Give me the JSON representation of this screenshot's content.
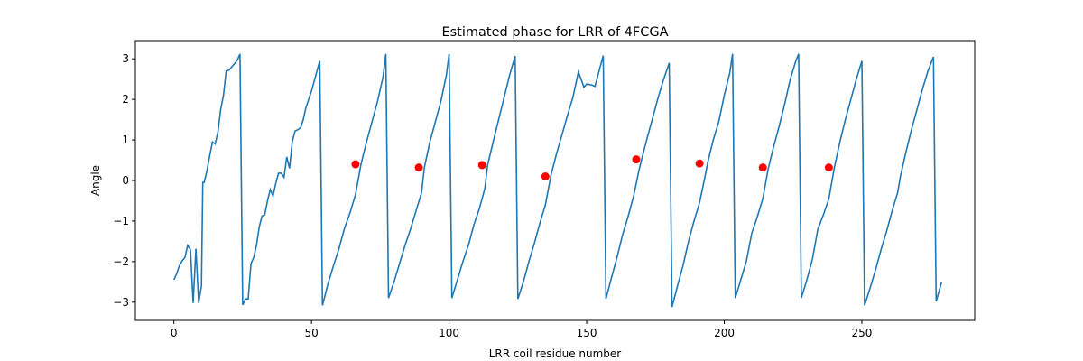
{
  "chart_data": {
    "type": "line",
    "title": "Estimated phase for LRR of 4FCGA",
    "xlabel": "LRR coil residue number",
    "ylabel": "Angle",
    "xlim": [
      -14,
      291
    ],
    "ylim": [
      -3.45,
      3.45
    ],
    "xticks": [
      0,
      50,
      100,
      150,
      200,
      250
    ],
    "yticks": [
      -3,
      -2,
      -1,
      0,
      1,
      2,
      3
    ],
    "grid": false,
    "line_color": "#1f77b4",
    "marker_color": "#ff0000",
    "series": [
      {
        "values": [
          [
            0,
            -2.45
          ],
          [
            1,
            -2.3
          ],
          [
            2,
            -2.1
          ],
          [
            3,
            -1.98
          ],
          [
            4,
            -1.9
          ],
          [
            5,
            -1.6
          ],
          [
            6,
            -1.7
          ],
          [
            7,
            -3.02
          ],
          [
            8,
            -1.68
          ],
          [
            9,
            -3.02
          ],
          [
            10,
            -2.6
          ],
          [
            10.5,
            -0.05
          ],
          [
            11,
            -0.05
          ],
          [
            12,
            0.25
          ],
          [
            13,
            0.6
          ],
          [
            14,
            0.95
          ],
          [
            15,
            0.9
          ],
          [
            16,
            1.2
          ],
          [
            17,
            1.75
          ],
          [
            18,
            2.1
          ],
          [
            19,
            2.7
          ],
          [
            20,
            2.72
          ],
          [
            21,
            2.8
          ],
          [
            22,
            2.88
          ],
          [
            23,
            2.96
          ],
          [
            24,
            3.12
          ],
          [
            25,
            -3.07
          ],
          [
            26,
            -2.92
          ],
          [
            27,
            -2.92
          ],
          [
            28,
            -2.05
          ],
          [
            29,
            -1.9
          ],
          [
            30,
            -1.6
          ],
          [
            31,
            -1.15
          ],
          [
            32,
            -0.88
          ],
          [
            33,
            -0.85
          ],
          [
            34,
            -0.5
          ],
          [
            35,
            -0.22
          ],
          [
            36,
            -0.38
          ],
          [
            37,
            -0.08
          ],
          [
            38,
            0.18
          ],
          [
            39,
            0.18
          ],
          [
            40,
            0.08
          ],
          [
            41,
            0.58
          ],
          [
            42,
            0.3
          ],
          [
            43,
            0.95
          ],
          [
            44,
            1.22
          ],
          [
            45,
            1.25
          ],
          [
            46,
            1.3
          ],
          [
            47,
            1.5
          ],
          [
            48,
            1.8
          ],
          [
            50,
            2.2
          ],
          [
            52,
            2.7
          ],
          [
            53,
            2.95
          ],
          [
            54,
            -3.08
          ],
          [
            56,
            -2.55
          ],
          [
            58,
            -2.1
          ],
          [
            60,
            -1.68
          ],
          [
            62,
            -1.18
          ],
          [
            64,
            -0.8
          ],
          [
            66,
            -0.35
          ],
          [
            68,
            0.4
          ],
          [
            70,
            0.95
          ],
          [
            72,
            1.45
          ],
          [
            74,
            1.95
          ],
          [
            76,
            2.55
          ],
          [
            77,
            3.12
          ],
          [
            78,
            -2.9
          ],
          [
            80,
            -2.5
          ],
          [
            82,
            -2.05
          ],
          [
            84,
            -1.6
          ],
          [
            86,
            -1.2
          ],
          [
            88,
            -0.75
          ],
          [
            90,
            -0.3
          ],
          [
            91,
            0.32
          ],
          [
            93,
            0.95
          ],
          [
            95,
            1.45
          ],
          [
            97,
            1.95
          ],
          [
            99,
            2.6
          ],
          [
            100,
            3.12
          ],
          [
            101,
            -2.9
          ],
          [
            103,
            -2.45
          ],
          [
            105,
            -2.0
          ],
          [
            107,
            -1.6
          ],
          [
            109,
            -1.1
          ],
          [
            111,
            -0.7
          ],
          [
            113,
            -0.2
          ],
          [
            114,
            0.38
          ],
          [
            116,
            0.95
          ],
          [
            118,
            1.5
          ],
          [
            120,
            2.05
          ],
          [
            122,
            2.6
          ],
          [
            124,
            3.07
          ],
          [
            125,
            -2.92
          ],
          [
            127,
            -2.5
          ],
          [
            129,
            -2.0
          ],
          [
            131,
            -1.55
          ],
          [
            133,
            -1.05
          ],
          [
            135,
            -0.6
          ],
          [
            137,
            0.12
          ],
          [
            139,
            0.65
          ],
          [
            141,
            1.12
          ],
          [
            143,
            1.6
          ],
          [
            145,
            2.05
          ],
          [
            147,
            2.68
          ],
          [
            149,
            2.3
          ],
          [
            150,
            2.38
          ],
          [
            152,
            2.35
          ],
          [
            153,
            2.32
          ],
          [
            156,
            3.08
          ],
          [
            157,
            -2.92
          ],
          [
            159,
            -2.4
          ],
          [
            161,
            -1.9
          ],
          [
            163,
            -1.35
          ],
          [
            165,
            -0.9
          ],
          [
            167,
            -0.4
          ],
          [
            169,
            0.25
          ],
          [
            170,
            0.52
          ],
          [
            172,
            1.05
          ],
          [
            174,
            1.55
          ],
          [
            176,
            2.05
          ],
          [
            178,
            2.5
          ],
          [
            180,
            2.9
          ],
          [
            181,
            -3.12
          ],
          [
            183,
            -2.6
          ],
          [
            185,
            -2.1
          ],
          [
            187,
            -1.5
          ],
          [
            189,
            -1.0
          ],
          [
            191,
            -0.55
          ],
          [
            193,
            0.1
          ],
          [
            194,
            0.45
          ],
          [
            196,
            1.0
          ],
          [
            198,
            1.45
          ],
          [
            200,
            2.1
          ],
          [
            202,
            2.65
          ],
          [
            203,
            3.12
          ],
          [
            204,
            -2.9
          ],
          [
            206,
            -2.45
          ],
          [
            208,
            -2.0
          ],
          [
            210,
            -1.3
          ],
          [
            212,
            -0.9
          ],
          [
            214,
            -0.45
          ],
          [
            216,
            0.3
          ],
          [
            218,
            0.85
          ],
          [
            220,
            1.35
          ],
          [
            222,
            1.9
          ],
          [
            224,
            2.5
          ],
          [
            226,
            2.95
          ],
          [
            227,
            3.12
          ],
          [
            228,
            -2.9
          ],
          [
            230,
            -2.45
          ],
          [
            232,
            -1.95
          ],
          [
            234,
            -1.2
          ],
          [
            236,
            -0.85
          ],
          [
            238,
            -0.45
          ],
          [
            240,
            0.32
          ],
          [
            242,
            0.95
          ],
          [
            244,
            1.5
          ],
          [
            246,
            2.0
          ],
          [
            248,
            2.5
          ],
          [
            250,
            2.95
          ],
          [
            251,
            -3.08
          ],
          [
            253,
            -2.65
          ],
          [
            255,
            -2.2
          ],
          [
            257,
            -1.7
          ],
          [
            259,
            -1.25
          ],
          [
            261,
            -0.75
          ],
          [
            263,
            -0.3
          ],
          [
            264,
            0.1
          ],
          [
            266,
            0.7
          ],
          [
            268,
            1.25
          ],
          [
            270,
            1.75
          ],
          [
            272,
            2.25
          ],
          [
            274,
            2.7
          ],
          [
            276,
            3.05
          ],
          [
            277,
            -2.98
          ],
          [
            279,
            -2.5
          ]
        ]
      },
      {
        "markers": [
          [
            66,
            0.4
          ],
          [
            89,
            0.32
          ],
          [
            112,
            0.38
          ],
          [
            135,
            0.1
          ],
          [
            168,
            0.52
          ],
          [
            191,
            0.42
          ],
          [
            214,
            0.32
          ],
          [
            238,
            0.32
          ]
        ]
      }
    ]
  }
}
